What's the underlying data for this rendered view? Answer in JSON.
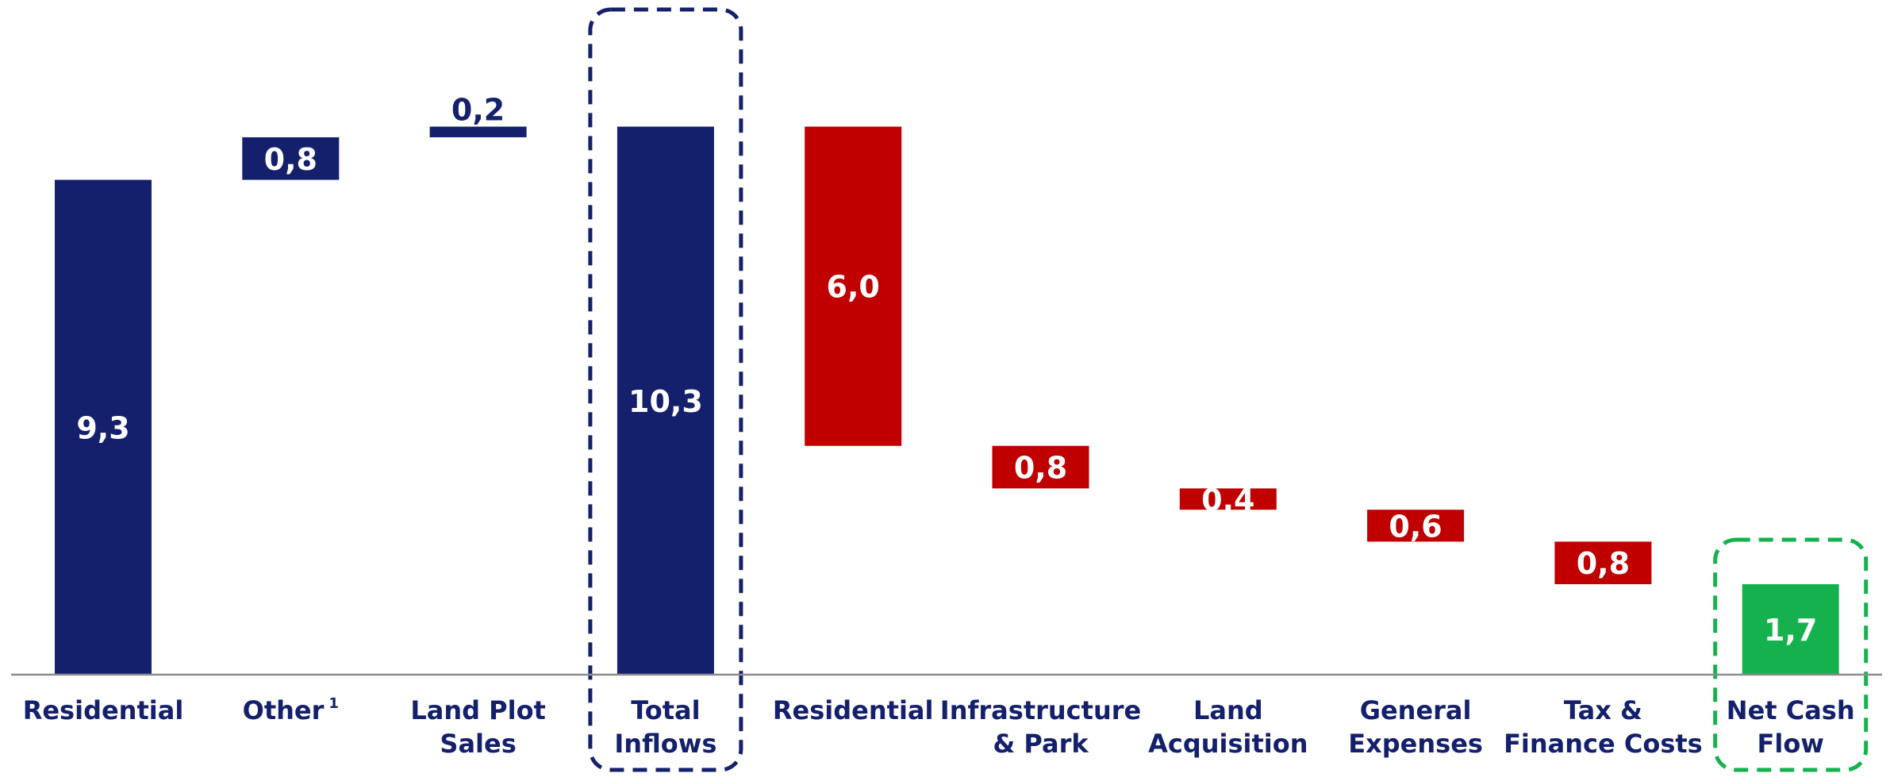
{
  "colors": {
    "inflow": "#14206b",
    "outflow": "#c00000",
    "net": "#16b14f",
    "axis": "#8c8c8c",
    "highlight_inflow": "#14206b",
    "highlight_net": "#16b14f"
  },
  "chart_data": {
    "type": "bar",
    "subtype": "waterfall",
    "title": "",
    "xlabel": "",
    "ylabel": "",
    "ylim": [
      0,
      11.8
    ],
    "grid": false,
    "legend": "none",
    "categories": [
      {
        "lines": [
          "Residential"
        ],
        "sup": ""
      },
      {
        "lines": [
          "Other"
        ],
        "sup": "1"
      },
      {
        "lines": [
          "Land Plot",
          "Sales"
        ],
        "sup": ""
      },
      {
        "lines": [
          "Total",
          "Inflows"
        ],
        "sup": ""
      },
      {
        "lines": [
          "Residential"
        ],
        "sup": ""
      },
      {
        "lines": [
          "Infrastructure",
          "& Park"
        ],
        "sup": ""
      },
      {
        "lines": [
          "Land",
          "Acquisition"
        ],
        "sup": ""
      },
      {
        "lines": [
          "General",
          "Expenses"
        ],
        "sup": ""
      },
      {
        "lines": [
          "Tax &",
          "Finance Costs"
        ],
        "sup": ""
      },
      {
        "lines": [
          "Net Cash",
          "Flow"
        ],
        "sup": ""
      }
    ],
    "bars": [
      {
        "kind": "inflow",
        "base": 0,
        "top": 9.3,
        "value": 9.3,
        "label": "9,3",
        "label_pos": "inside"
      },
      {
        "kind": "inflow",
        "base": 9.3,
        "top": 10.1,
        "value": 0.8,
        "label": "0,8",
        "label_pos": "inside"
      },
      {
        "kind": "inflow",
        "base": 10.1,
        "top": 10.3,
        "value": 0.2,
        "label": "0,2",
        "label_pos": "above"
      },
      {
        "kind": "inflow",
        "base": 0,
        "top": 10.3,
        "value": 10.3,
        "label": "10,3",
        "label_pos": "inside"
      },
      {
        "kind": "outflow",
        "base": 4.3,
        "top": 10.3,
        "value": 6.0,
        "label": "6,0",
        "label_pos": "inside"
      },
      {
        "kind": "outflow",
        "base": 3.5,
        "top": 4.3,
        "value": 0.8,
        "label": "0,8",
        "label_pos": "inside"
      },
      {
        "kind": "outflow",
        "base": 3.1,
        "top": 3.5,
        "value": 0.4,
        "label": "0,4",
        "label_pos": "inside"
      },
      {
        "kind": "outflow",
        "base": 2.5,
        "top": 3.1,
        "value": 0.6,
        "label": "0,6",
        "label_pos": "inside"
      },
      {
        "kind": "outflow",
        "base": 1.7,
        "top": 2.5,
        "value": 0.8,
        "label": "0,8",
        "label_pos": "inside"
      },
      {
        "kind": "net",
        "base": 0,
        "top": 1.7,
        "value": 1.7,
        "label": "1,7",
        "label_pos": "inside"
      }
    ],
    "highlights": [
      {
        "category_index": 3,
        "style": "dashed",
        "color": "inflow"
      },
      {
        "category_index": 9,
        "style": "dashed",
        "color": "net"
      }
    ]
  }
}
